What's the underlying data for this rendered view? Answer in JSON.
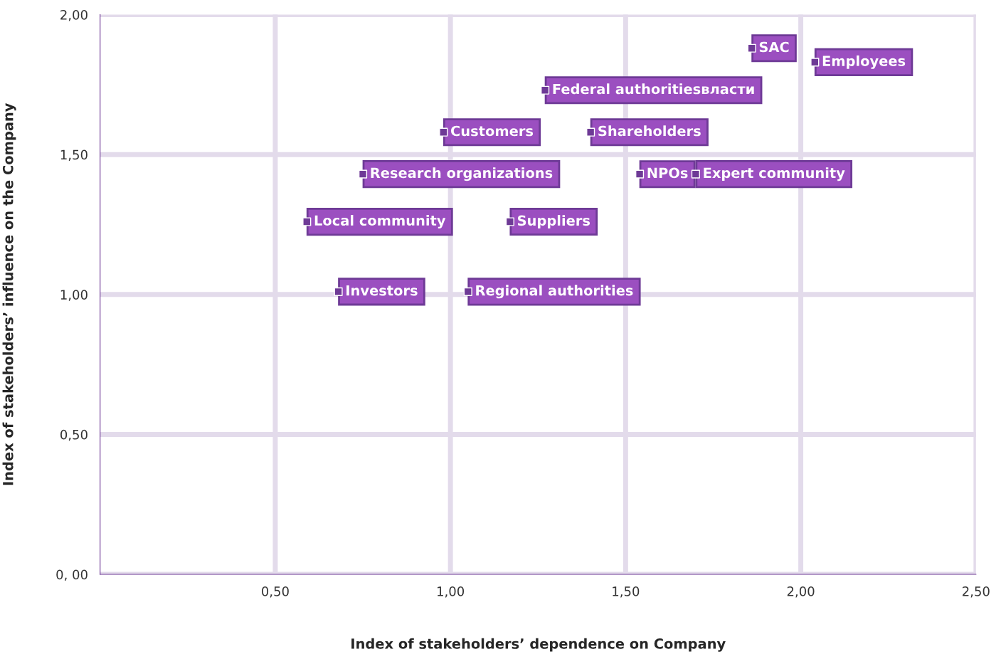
{
  "chart_data": {
    "type": "scatter",
    "xlabel": "Index of stakeholders’ dependence on Company",
    "ylabel": "Index of stakeholders’ influence on the Company",
    "x": [
      0.68,
      1.05,
      1.17,
      0.59,
      0.75,
      0.98,
      1.4,
      1.54,
      1.7,
      1.27,
      1.86,
      2.04
    ],
    "series": [
      {
        "color": "#6e3a96",
        "values": [
          1.01,
          1.01,
          1.26,
          1.26,
          1.43,
          1.58,
          1.58,
          1.43,
          1.43,
          1.73,
          1.88,
          1.83
        ]
      }
    ],
    "annotations": [
      {
        "text": "Investors",
        "x": 0.68,
        "y": 1.01
      },
      {
        "text": "Regional authorities",
        "x": 1.05,
        "y": 1.01
      },
      {
        "text": "Suppliers",
        "x": 1.17,
        "y": 1.26
      },
      {
        "text": "Local community",
        "x": 0.59,
        "y": 1.26
      },
      {
        "text": "Research organizations",
        "x": 0.75,
        "y": 1.43
      },
      {
        "text": "Customers",
        "x": 0.98,
        "y": 1.58
      },
      {
        "text": "Shareholders",
        "x": 1.4,
        "y": 1.58
      },
      {
        "text": "NPOs",
        "x": 1.54,
        "y": 1.43
      },
      {
        "text": "Expert community",
        "x": 1.7,
        "y": 1.43
      },
      {
        "text": "Federal authoritiesвласти",
        "x": 1.27,
        "y": 1.73
      },
      {
        "text": "SAC",
        "x": 1.86,
        "y": 1.88
      },
      {
        "text": "Employees",
        "x": 2.04,
        "y": 1.83
      }
    ],
    "xlim": [
      0,
      2.5
    ],
    "xticks": [
      {
        "value": 0.5,
        "label": "0,50"
      },
      {
        "value": 1.0,
        "label": "1,00"
      },
      {
        "value": 1.5,
        "label": "1,50"
      },
      {
        "value": 2.0,
        "label": "2,00"
      },
      {
        "value": 2.5,
        "label": "2,50"
      }
    ],
    "ylim": [
      0,
      2
    ],
    "yticks": [
      {
        "value": 0,
        "label": "0, 00"
      },
      {
        "value": 0.5,
        "label": "0,50"
      },
      {
        "value": 1.0,
        "label": "1,00"
      },
      {
        "value": 1.5,
        "label": "1,50"
      },
      {
        "value": 2.0,
        "label": "2,00"
      }
    ],
    "grid": true,
    "marker": "square"
  }
}
